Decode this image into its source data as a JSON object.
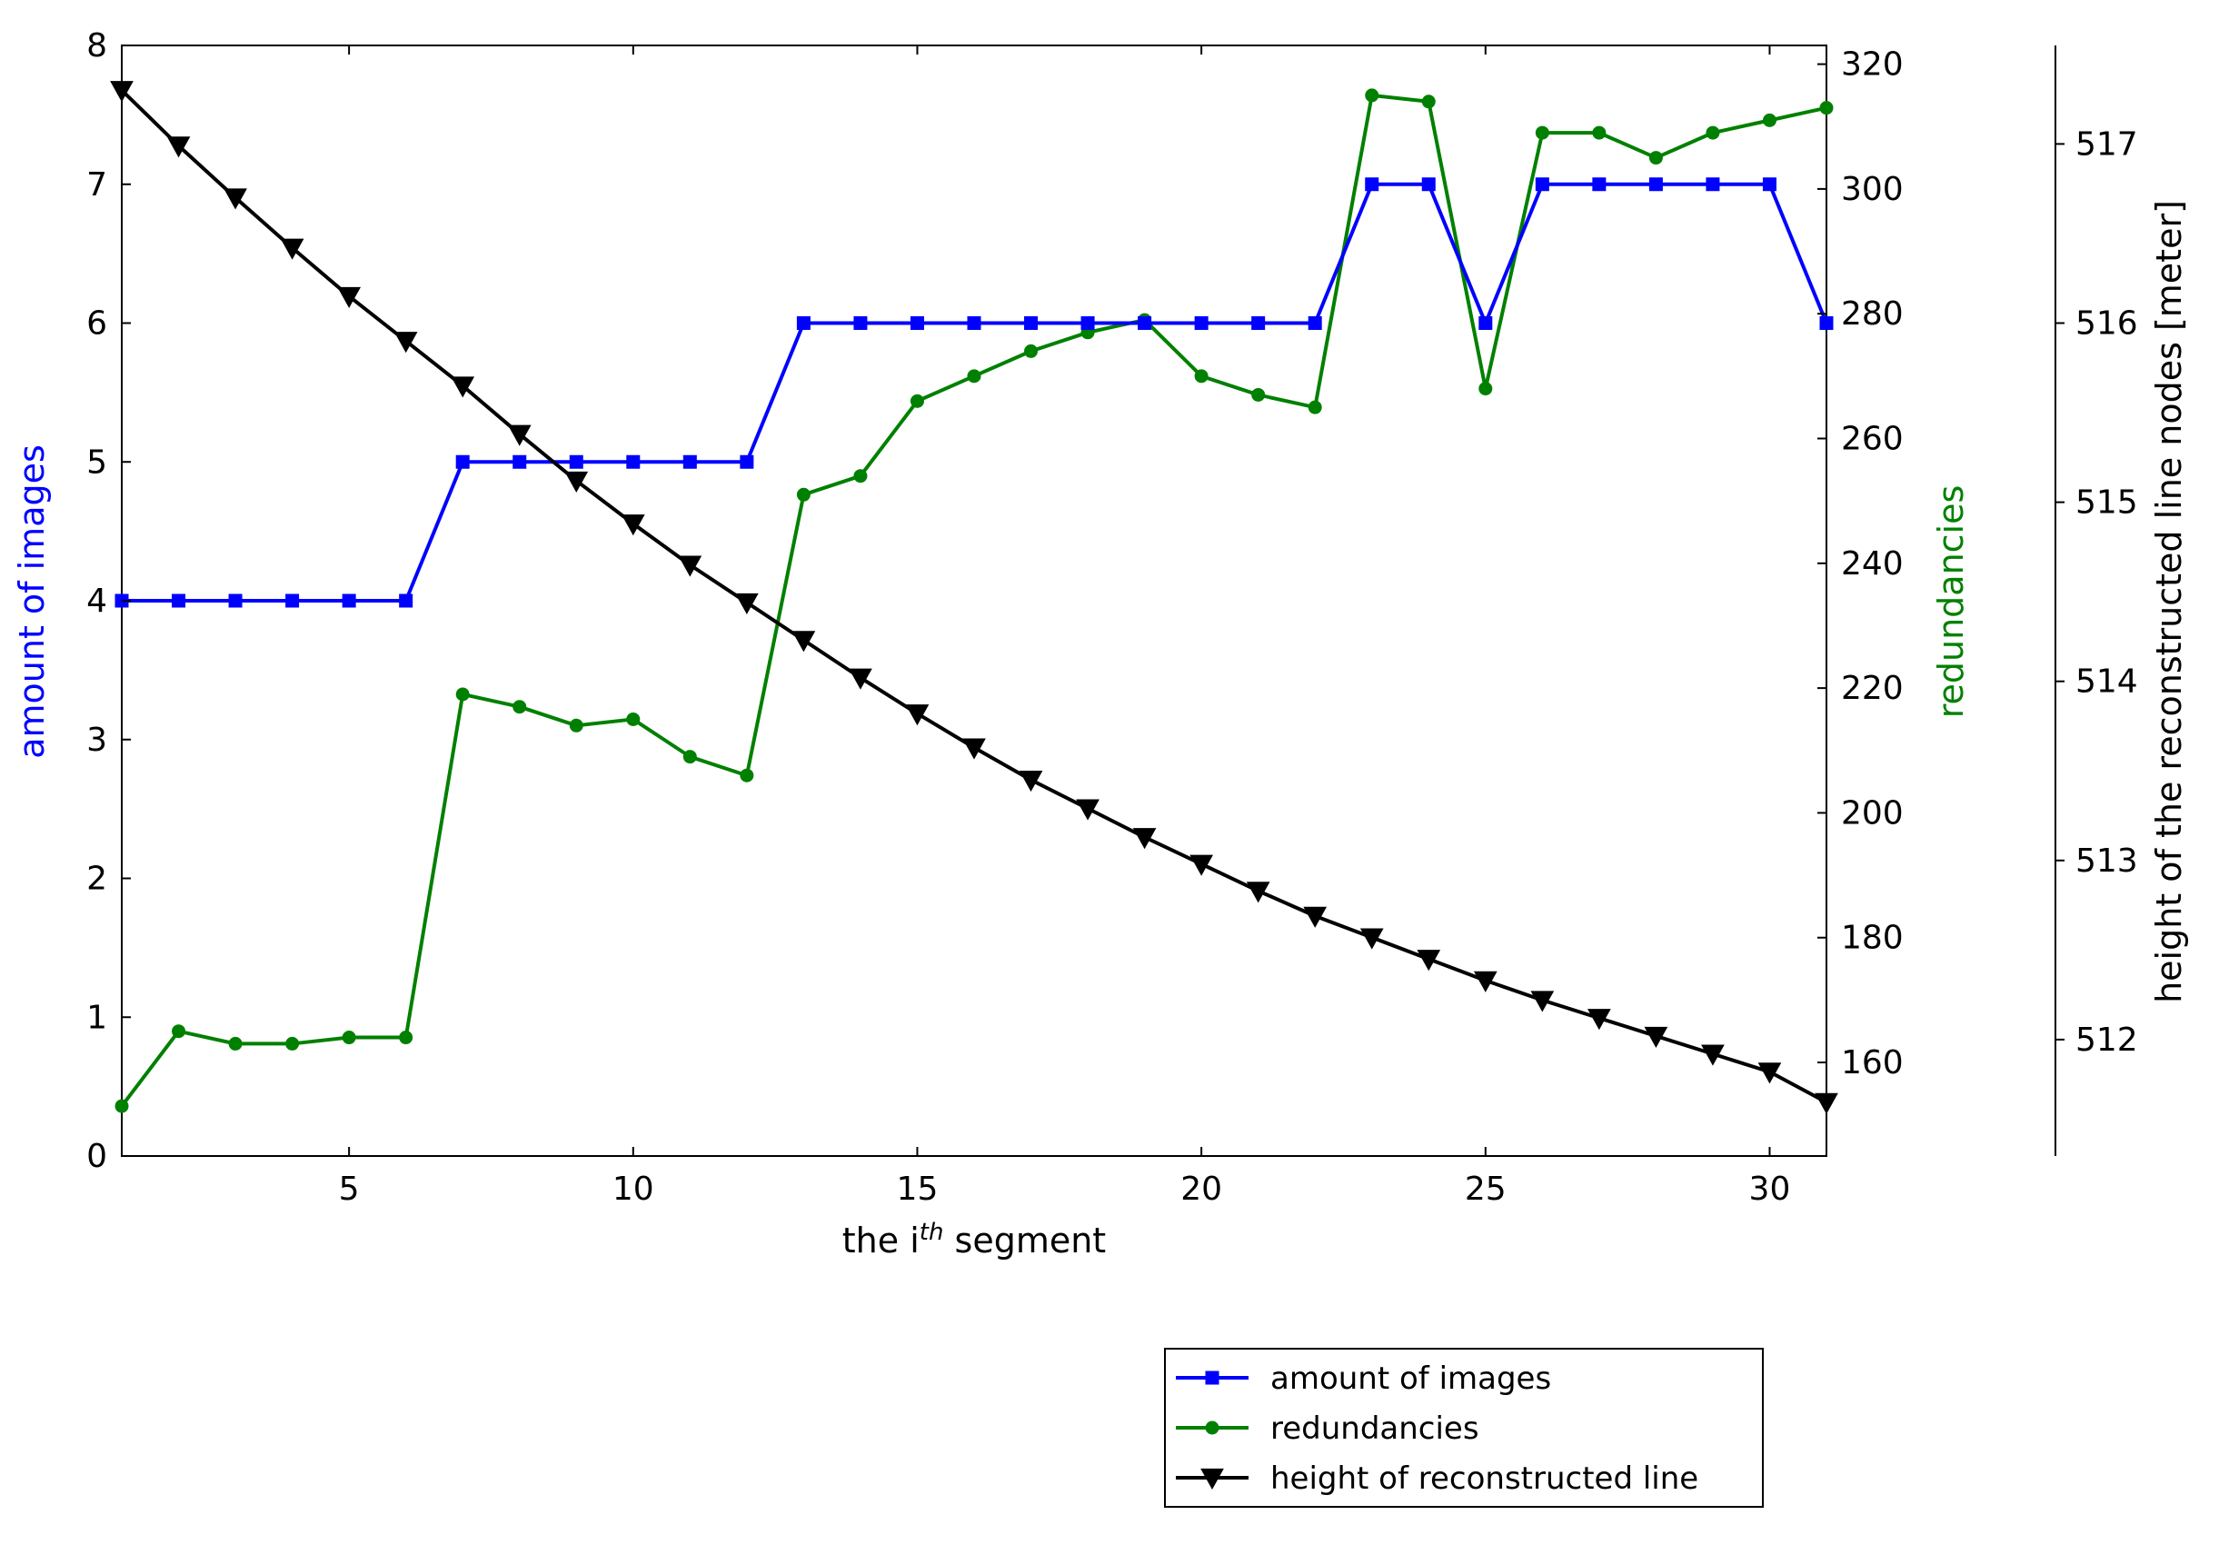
{
  "chart_data": {
    "type": "line",
    "xlabel": "the i",
    "xlabel_sup": "th",
    "xlabel_suffix": " segment",
    "xlim": [
      1,
      31
    ],
    "xticks": [
      5,
      10,
      15,
      20,
      25,
      30
    ],
    "grid": false,
    "legend_placement": "below-right",
    "x": [
      1,
      2,
      3,
      4,
      5,
      6,
      7,
      8,
      9,
      10,
      11,
      12,
      13,
      14,
      15,
      16,
      17,
      18,
      19,
      20,
      21,
      22,
      23,
      24,
      25,
      26,
      27,
      28,
      29,
      30,
      31
    ],
    "axes": [
      {
        "id": "left",
        "label": "amount of images",
        "color": "#0000ff",
        "ylim": [
          0,
          8
        ],
        "ticks": [
          0,
          1,
          2,
          3,
          4,
          5,
          6,
          7,
          8
        ]
      },
      {
        "id": "right1",
        "label": "redundancies",
        "color": "#008000",
        "ylim": [
          145,
          323
        ],
        "ticks": [
          160,
          180,
          200,
          220,
          240,
          260,
          280,
          300,
          320
        ]
      },
      {
        "id": "right2",
        "label": "height of the reconstructed line nodes [meter]",
        "color": "#000000",
        "ylim": [
          511.35,
          517.55
        ],
        "ticks": [
          512,
          513,
          514,
          515,
          516,
          517
        ]
      }
    ],
    "series": [
      {
        "name": "amount of images",
        "axis": "left",
        "color": "#0000ff",
        "marker": "square",
        "values": [
          4,
          4,
          4,
          4,
          4,
          4,
          5,
          5,
          5,
          5,
          5,
          5,
          6,
          6,
          6,
          6,
          6,
          6,
          6,
          6,
          6,
          6,
          7,
          7,
          6,
          7,
          7,
          7,
          7,
          7,
          6
        ]
      },
      {
        "name": "redundancies",
        "axis": "right1",
        "color": "#008000",
        "marker": "circle",
        "values": [
          153,
          165,
          163,
          163,
          164,
          164,
          219,
          217,
          214,
          215,
          209,
          206,
          251,
          254,
          266,
          270,
          274,
          277,
          279,
          270,
          267,
          265,
          315,
          314,
          268,
          309,
          309,
          305,
          309,
          311,
          313
        ]
      },
      {
        "name": "height of reconstructed line",
        "axis": "right2",
        "color": "#000000",
        "marker": "triangle-down",
        "values": [
          517.3,
          516.99,
          516.7,
          516.42,
          516.15,
          515.9,
          515.65,
          515.38,
          515.12,
          514.88,
          514.65,
          514.44,
          514.23,
          514.02,
          513.82,
          513.63,
          513.45,
          513.29,
          513.13,
          512.98,
          512.83,
          512.69,
          512.57,
          512.45,
          512.33,
          512.22,
          512.12,
          512.02,
          511.92,
          511.82,
          511.65
        ]
      }
    ]
  }
}
